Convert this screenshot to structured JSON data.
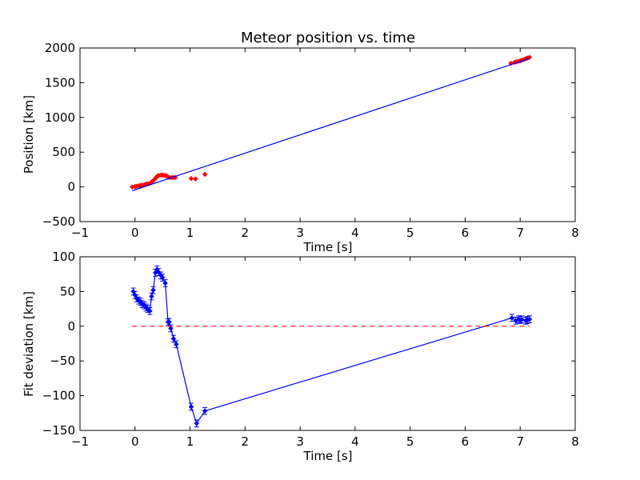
{
  "chart_data": [
    {
      "type": "scatter",
      "title": "Meteor position vs. time",
      "xlabel": "Time [s]",
      "ylabel": "Position [km]",
      "xlim": [
        -1,
        8
      ],
      "ylim": [
        -500,
        2000
      ],
      "xticks": [
        -1,
        0,
        1,
        2,
        3,
        4,
        5,
        6,
        7,
        8
      ],
      "yticks": [
        -500,
        0,
        500,
        1000,
        1500,
        2000
      ],
      "series": [
        {
          "kind": "points",
          "color": "#ff0000",
          "x": [
            -0.05,
            0.0,
            0.03,
            0.07,
            0.1,
            0.13,
            0.17,
            0.2,
            0.23,
            0.27,
            0.3,
            0.33,
            0.37,
            0.4,
            0.43,
            0.47,
            0.5,
            0.53,
            0.57,
            0.6,
            0.63,
            0.67,
            0.7,
            0.73,
            1.02,
            1.1,
            1.27,
            6.83,
            6.9,
            6.93,
            6.97,
            7.0,
            7.03,
            7.07,
            7.1,
            7.13,
            7.17
          ],
          "y": [
            0,
            5,
            10,
            15,
            20,
            25,
            30,
            40,
            45,
            50,
            70,
            90,
            120,
            150,
            165,
            170,
            170,
            165,
            160,
            140,
            135,
            135,
            135,
            135,
            120,
            115,
            180,
            1780,
            1795,
            1800,
            1810,
            1815,
            1825,
            1835,
            1845,
            1855,
            1865
          ]
        },
        {
          "kind": "line",
          "color": "#0000ff",
          "x": [
            -0.05,
            7.17
          ],
          "y": [
            -55,
            1850
          ]
        }
      ]
    },
    {
      "type": "line",
      "title": "",
      "xlabel": "Time [s]",
      "ylabel": "Fit deviation [km]",
      "xlim": [
        -1,
        8
      ],
      "ylim": [
        -150,
        100
      ],
      "xticks": [
        -1,
        0,
        1,
        2,
        3,
        4,
        5,
        6,
        7,
        8
      ],
      "yticks": [
        -150,
        -100,
        -50,
        0,
        50,
        100
      ],
      "series": [
        {
          "kind": "errorbar",
          "color": "#0000ff",
          "x": [
            -0.03,
            0.0,
            0.03,
            0.07,
            0.1,
            0.13,
            0.17,
            0.2,
            0.23,
            0.27,
            0.3,
            0.33,
            0.37,
            0.4,
            0.43,
            0.47,
            0.5,
            0.55,
            0.6,
            0.62,
            0.65,
            0.7,
            0.75,
            1.02,
            1.12,
            1.27,
            6.85,
            6.92,
            6.97,
            7.0,
            7.03,
            7.1,
            7.13,
            7.17
          ],
          "y": [
            50,
            45,
            40,
            37,
            35,
            32,
            30,
            27,
            25,
            22,
            43,
            52,
            77,
            82,
            78,
            73,
            70,
            62,
            6,
            6,
            -3,
            -18,
            -26,
            -116,
            -140,
            -122,
            12,
            8,
            10,
            9,
            10,
            8,
            9,
            10
          ],
          "yerr": [
            5,
            5,
            5,
            5,
            5,
            5,
            5,
            5,
            5,
            5,
            5,
            5,
            5,
            5,
            5,
            5,
            5,
            5,
            5,
            5,
            5,
            5,
            5,
            5,
            5,
            5,
            5,
            5,
            5,
            5,
            5,
            5,
            5,
            5
          ]
        },
        {
          "kind": "dashed",
          "color": "#ff0000",
          "x": [
            -0.05,
            7.17
          ],
          "y": [
            0,
            0
          ]
        }
      ]
    }
  ]
}
